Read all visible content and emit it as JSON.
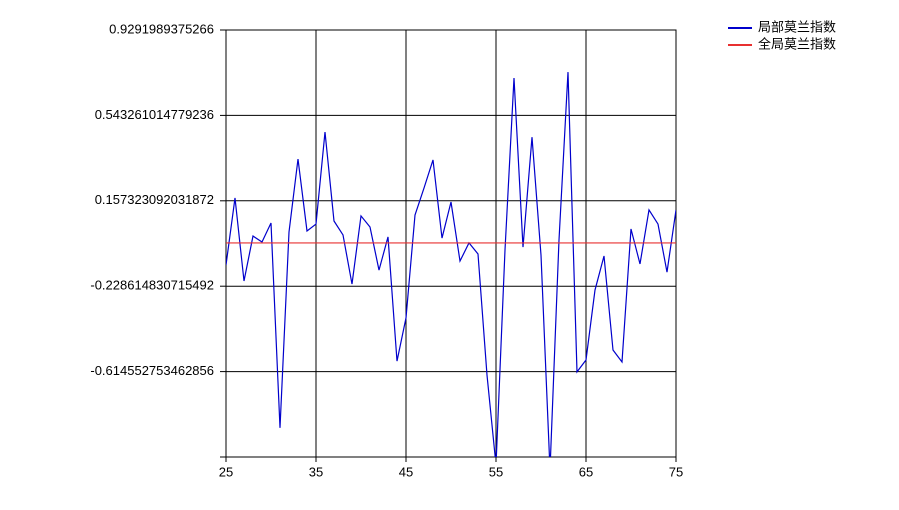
{
  "chart_data": {
    "type": "line",
    "x": [
      25,
      26,
      27,
      28,
      29,
      30,
      31,
      32,
      33,
      34,
      35,
      36,
      37,
      38,
      39,
      40,
      41,
      42,
      43,
      44,
      45,
      46,
      47,
      48,
      49,
      50,
      51,
      52,
      53,
      54,
      55,
      56,
      57,
      58,
      59,
      60,
      61,
      62,
      63,
      64,
      65,
      66,
      67,
      68,
      69,
      70,
      71,
      72,
      73,
      74,
      75
    ],
    "series": [
      {
        "name": "局部莫兰指数",
        "color": "#0000cc",
        "values": [
          -0.133,
          0.17,
          -0.205,
          -0.002,
          -0.029,
          0.057,
          -0.869,
          0.016,
          0.346,
          0.021,
          0.052,
          0.468,
          0.066,
          0.003,
          -0.219,
          0.089,
          0.039,
          -0.156,
          -0.006,
          -0.567,
          -0.372,
          0.093,
          0.215,
          0.342,
          -0.011,
          0.152,
          -0.115,
          -0.033,
          -0.083,
          -0.63,
          -1.037,
          -0.065,
          0.712,
          -0.052,
          0.445,
          -0.088,
          -1.059,
          -0.02,
          0.739,
          -0.616,
          -0.562,
          -0.246,
          -0.092,
          -0.517,
          -0.571,
          0.03,
          -0.128,
          0.116,
          0.052,
          -0.165,
          0.116
        ]
      },
      {
        "name": "全局莫兰指数",
        "color": "#e83030",
        "values": [
          -0.033,
          -0.033,
          -0.033,
          -0.033,
          -0.033,
          -0.033,
          -0.033,
          -0.033,
          -0.033,
          -0.033,
          -0.033,
          -0.033,
          -0.033,
          -0.033,
          -0.033,
          -0.033,
          -0.033,
          -0.033,
          -0.033,
          -0.033,
          -0.033,
          -0.033,
          -0.033,
          -0.033,
          -0.033,
          -0.033,
          -0.033,
          -0.033,
          -0.033,
          -0.033,
          -0.033,
          -0.033,
          -0.033,
          -0.033,
          -0.033,
          -0.033,
          -0.033,
          -0.033,
          -0.033,
          -0.033,
          -0.033,
          -0.033,
          -0.033,
          -0.033,
          -0.033,
          -0.033,
          -0.033,
          -0.033,
          -0.033,
          -0.033,
          -0.033
        ]
      }
    ],
    "xlim": [
      25,
      75
    ],
    "xticks": [
      25,
      35,
      45,
      55,
      65,
      75
    ],
    "ylim": [
      -1.00049067621022,
      0.9291989375266
    ],
    "yticks": [
      0.9291989375266,
      0.543261014779236,
      0.157323092031872,
      -0.228614830715492,
      -0.614552753462856
    ],
    "grid": true,
    "legend": "top-right"
  }
}
